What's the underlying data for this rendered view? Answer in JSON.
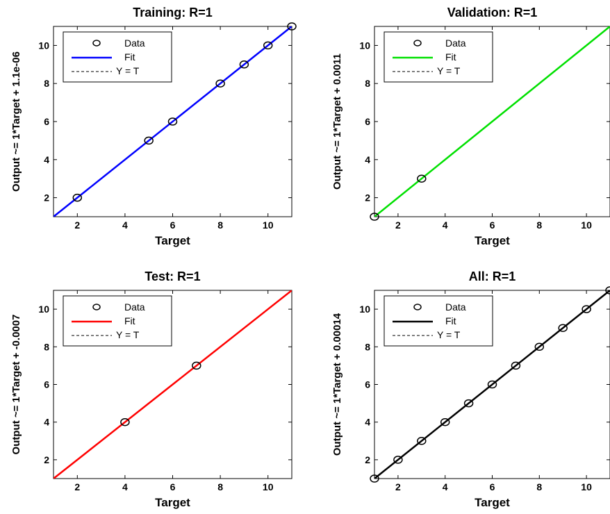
{
  "chart_data": [
    {
      "type": "scatter",
      "title": "Training: R=1",
      "xlabel": "Target",
      "ylabel": "Output ~= 1*Target + 1.1e-06",
      "xlim": [
        1,
        11
      ],
      "ylim": [
        1,
        11
      ],
      "xticks": [
        2,
        4,
        6,
        8,
        10
      ],
      "yticks": [
        2,
        4,
        6,
        8,
        10
      ],
      "fit_color": "#0000ff",
      "legend_position": "top-left",
      "legend": [
        "Data",
        "Fit",
        "Y = T"
      ],
      "points": [
        [
          2,
          2
        ],
        [
          5,
          5
        ],
        [
          6,
          6
        ],
        [
          8,
          8
        ],
        [
          9,
          9
        ],
        [
          10,
          10
        ],
        [
          11,
          11
        ]
      ],
      "fit": {
        "slope": 1,
        "intercept": 0
      }
    },
    {
      "type": "scatter",
      "title": "Validation: R=1",
      "xlabel": "Target",
      "ylabel": "Output ~= 1*Target + 0.0011",
      "xlim": [
        1,
        11
      ],
      "ylim": [
        1,
        11
      ],
      "xticks": [
        2,
        4,
        6,
        8,
        10
      ],
      "yticks": [
        2,
        4,
        6,
        8,
        10
      ],
      "fit_color": "#00e000",
      "legend_position": "top-left",
      "legend": [
        "Data",
        "Fit",
        "Y = T"
      ],
      "points": [
        [
          1,
          1
        ],
        [
          3,
          3
        ]
      ],
      "fit": {
        "slope": 1,
        "intercept": 0.0011
      }
    },
    {
      "type": "scatter",
      "title": "Test: R=1",
      "xlabel": "Target",
      "ylabel": "Output ~= 1*Target + -0.0007",
      "xlim": [
        1,
        11
      ],
      "ylim": [
        1,
        11
      ],
      "xticks": [
        2,
        4,
        6,
        8,
        10
      ],
      "yticks": [
        2,
        4,
        6,
        8,
        10
      ],
      "fit_color": "#ff0000",
      "legend_position": "top-left",
      "legend": [
        "Data",
        "Fit",
        "Y = T"
      ],
      "points": [
        [
          4,
          4
        ],
        [
          7,
          7
        ]
      ],
      "fit": {
        "slope": 1,
        "intercept": -0.0007
      }
    },
    {
      "type": "scatter",
      "title": "All: R=1",
      "xlabel": "Target",
      "ylabel": "Output ~= 1*Target + 0.00014",
      "xlim": [
        1,
        11
      ],
      "ylim": [
        1,
        11
      ],
      "xticks": [
        2,
        4,
        6,
        8,
        10
      ],
      "yticks": [
        2,
        4,
        6,
        8,
        10
      ],
      "fit_color": "#000000",
      "legend_position": "top-left",
      "legend": [
        "Data",
        "Fit",
        "Y = T"
      ],
      "points": [
        [
          1,
          1
        ],
        [
          2,
          2
        ],
        [
          3,
          3
        ],
        [
          4,
          4
        ],
        [
          5,
          5
        ],
        [
          6,
          6
        ],
        [
          7,
          7
        ],
        [
          8,
          8
        ],
        [
          9,
          9
        ],
        [
          10,
          10
        ],
        [
          11,
          11
        ]
      ],
      "fit": {
        "slope": 1,
        "intercept": 0.00014
      }
    }
  ]
}
